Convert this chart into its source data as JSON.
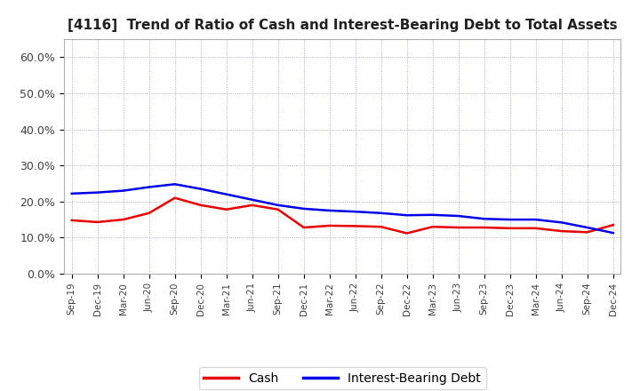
{
  "title": "[4116]  Trend of Ratio of Cash and Interest-Bearing Debt to Total Assets",
  "x_labels": [
    "Sep-19",
    "Dec-19",
    "Mar-20",
    "Jun-20",
    "Sep-20",
    "Dec-20",
    "Mar-21",
    "Jun-21",
    "Sep-21",
    "Dec-21",
    "Mar-22",
    "Jun-22",
    "Sep-22",
    "Dec-22",
    "Mar-23",
    "Jun-23",
    "Sep-23",
    "Dec-23",
    "Mar-24",
    "Jun-24",
    "Sep-24",
    "Dec-24"
  ],
  "cash": [
    0.148,
    0.143,
    0.15,
    0.168,
    0.21,
    0.19,
    0.178,
    0.19,
    0.178,
    0.128,
    0.133,
    0.132,
    0.13,
    0.112,
    0.13,
    0.128,
    0.128,
    0.126,
    0.126,
    0.118,
    0.115,
    0.135
  ],
  "interest_bearing_debt": [
    0.222,
    0.225,
    0.23,
    0.24,
    0.248,
    0.235,
    0.22,
    0.205,
    0.19,
    0.18,
    0.175,
    0.172,
    0.168,
    0.162,
    0.163,
    0.16,
    0.152,
    0.15,
    0.15,
    0.142,
    0.128,
    0.113
  ],
  "cash_color": "#e80000",
  "debt_color": "#0000e8",
  "ylim": [
    0.0,
    0.65
  ],
  "yticks": [
    0.0,
    0.1,
    0.2,
    0.3,
    0.4,
    0.5,
    0.6
  ],
  "ytick_labels": [
    "0.0%",
    "10.0%",
    "20.0%",
    "30.0%",
    "40.0%",
    "50.0%",
    "60.0%"
  ],
  "legend_cash": "Cash",
  "legend_debt": "Interest-Bearing Debt",
  "background_color": "#ffffff",
  "grid_color": "#9090b0",
  "title_fontsize": 11,
  "line_width": 1.8
}
